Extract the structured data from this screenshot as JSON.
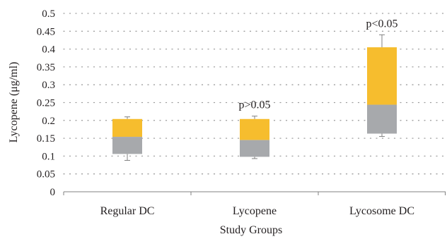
{
  "chart_data": {
    "type": "bar",
    "subtype": "box-plot",
    "title": "",
    "xlabel": "Study Groups",
    "ylabel": "Lycopene (μg/ml)",
    "ylim": [
      0,
      0.5
    ],
    "yticks": [
      0,
      0.05,
      0.1,
      0.15,
      0.2,
      0.25,
      0.3,
      0.35,
      0.4,
      0.45,
      0.5
    ],
    "ytick_labels": [
      "0",
      "0.05",
      "0.1",
      "0.15",
      "0.2",
      "0.25",
      "0.3",
      "0.35",
      "0.4",
      "0.45",
      "0.5"
    ],
    "grid": "dotted-horizontal",
    "categories": [
      "Regular DC",
      "Lycopene",
      "Lycosome DC"
    ],
    "boxes": [
      {
        "min": 0.088,
        "q1": 0.106,
        "median": 0.154,
        "q3": 0.204,
        "max": 0.21
      },
      {
        "min": 0.093,
        "q1": 0.098,
        "median": 0.145,
        "q3": 0.204,
        "max": 0.212
      },
      {
        "min": 0.155,
        "q1": 0.163,
        "median": 0.244,
        "q3": 0.405,
        "max": 0.44
      }
    ],
    "annotations": [
      "",
      "p>0.05",
      "p<0.05"
    ],
    "colors": {
      "upper_box": "#f6bd2e",
      "lower_box": "#a7a9ac",
      "whisker": "#808080",
      "axis": "#808080",
      "grid": "#9d9d9d"
    }
  }
}
